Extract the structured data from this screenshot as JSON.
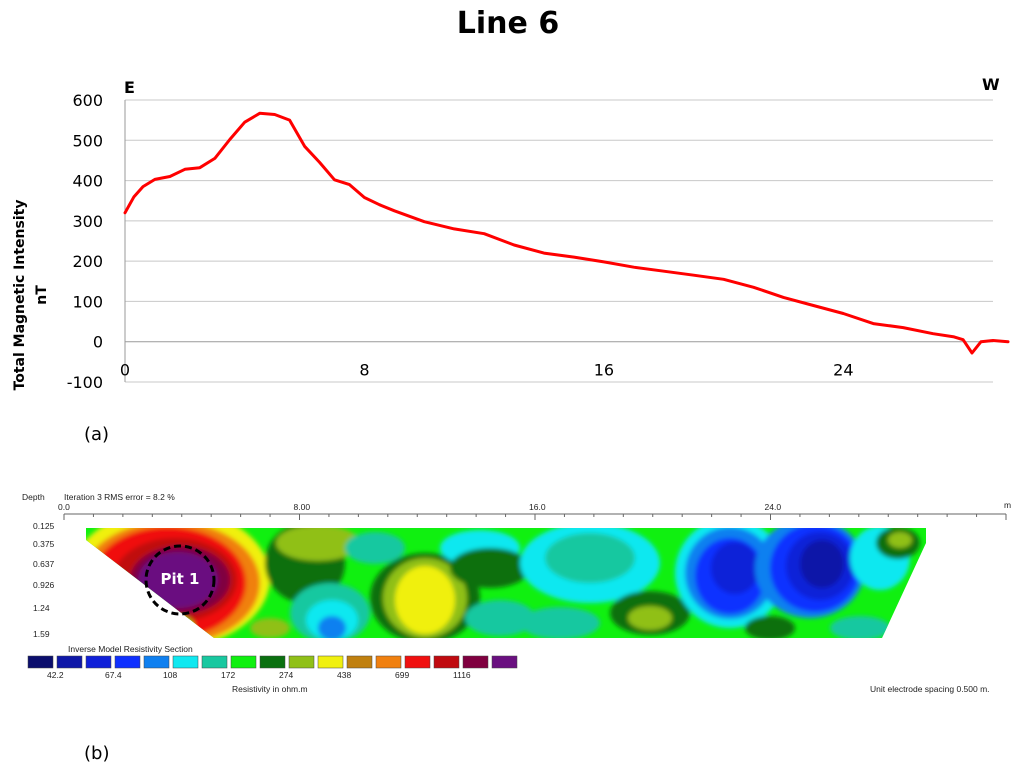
{
  "figure": {
    "title": "Line 6",
    "panel_a_label": "(a)",
    "panel_b_label": "(b)"
  },
  "chart_data": [
    {
      "type": "line",
      "title": "",
      "ylabel_line1": "Total Magnetic Intensity",
      "ylabel_line2": "nT",
      "xlabel": "",
      "direction_left": "E",
      "direction_right": "W",
      "xlim": [
        0,
        29
      ],
      "ylim": [
        -100,
        600
      ],
      "x_ticks": [
        "0",
        "8",
        "16",
        "24"
      ],
      "x_tick_values": [
        0,
        8,
        16,
        24
      ],
      "y_ticks": [
        "600",
        "500",
        "400",
        "300",
        "200",
        "100",
        "0",
        "-100"
      ],
      "y_tick_values": [
        600,
        500,
        400,
        300,
        200,
        100,
        0,
        -100
      ],
      "grid": true,
      "series": [
        {
          "color": "#ff0000",
          "x": [
            0,
            0.3,
            0.6,
            1.0,
            1.5,
            2.0,
            2.5,
            3.0,
            3.5,
            4.0,
            4.5,
            5.0,
            5.5,
            6.0,
            6.5,
            7.0,
            7.5,
            8.0,
            8.5,
            9.0,
            10.0,
            11.0,
            12.0,
            13.0,
            14.0,
            15.0,
            16.0,
            17.0,
            18.0,
            19.0,
            20.0,
            21.0,
            22.0,
            23.0,
            24.0,
            25.0,
            26.0,
            27.0,
            27.7,
            28.0,
            28.3,
            28.6,
            29.0,
            29.5
          ],
          "y": [
            320,
            360,
            385,
            403,
            410,
            428,
            432,
            455,
            502,
            545,
            567,
            564,
            550,
            485,
            445,
            402,
            390,
            358,
            340,
            325,
            298,
            280,
            268,
            240,
            220,
            210,
            198,
            185,
            175,
            165,
            155,
            135,
            110,
            90,
            70,
            45,
            35,
            20,
            12,
            5,
            -28,
            0,
            3,
            0
          ]
        }
      ]
    },
    {
      "type": "heatmap",
      "title": "Inverse Model Resistivity Section",
      "header_depth": "Depth",
      "header_iteration": "Iteration 3 RMS error = 8.2 %",
      "x_unit": "m",
      "x_ticks": [
        "0.0",
        "8.00",
        "16.0",
        "24.0"
      ],
      "x_tick_values": [
        0,
        8,
        16,
        24
      ],
      "xlim": [
        0,
        32
      ],
      "depth_ticks": [
        "0.125",
        "0.375",
        "0.637",
        "0.926",
        "1.24",
        "1.59"
      ],
      "depth_tick_values": [
        0.125,
        0.375,
        0.637,
        0.926,
        1.24,
        1.59
      ],
      "annotation": "Pit 1",
      "colorbar_label": "Resistivity in ohm.m",
      "colorbar_colors": [
        "#0b0e6d",
        "#0f18a8",
        "#1020d8",
        "#0f30ff",
        "#0f80f0",
        "#10e8f0",
        "#19c8a0",
        "#10f010",
        "#0a7010",
        "#90c018",
        "#f0f010",
        "#c08010",
        "#f08010",
        "#f01010",
        "#c00a10",
        "#800040",
        "#6a1080"
      ],
      "colorbar_ticks": [
        "42.2",
        "67.4",
        "108",
        "172",
        "274",
        "438",
        "699",
        "1116"
      ],
      "footer_note": "Unit electrode spacing 0.500 m."
    }
  ]
}
